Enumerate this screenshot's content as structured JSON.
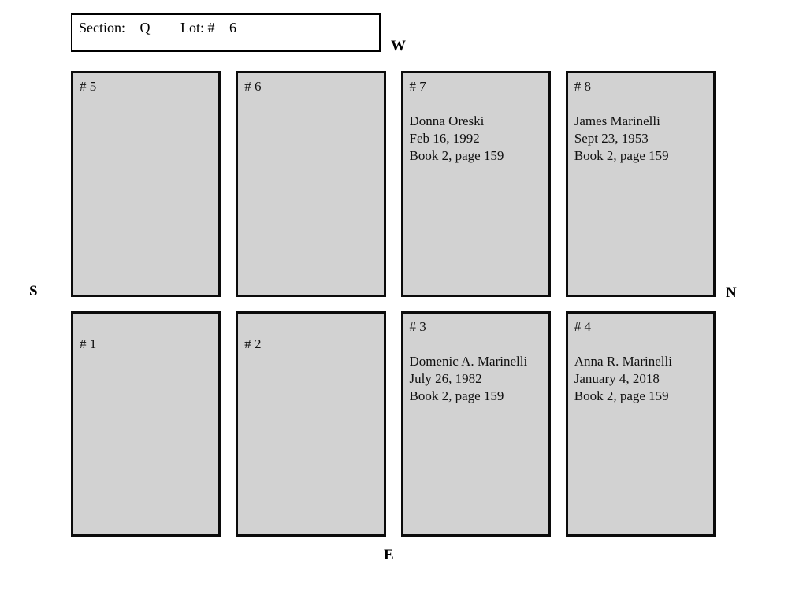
{
  "header": {
    "section_label": "Section:",
    "section_value": "Q",
    "lot_label": "Lot: #",
    "lot_value": "6"
  },
  "compass": {
    "west": "W",
    "south": "S",
    "north": "N",
    "east": "E"
  },
  "plots": [
    {
      "label": "# 5",
      "name": "",
      "date": "",
      "book": ""
    },
    {
      "label": "# 6",
      "name": "",
      "date": "",
      "book": ""
    },
    {
      "label": "# 7",
      "name": "Donna Oreski",
      "date": "Feb 16, 1992",
      "book": "Book 2, page 159"
    },
    {
      "label": "# 8",
      "name": "James Marinelli",
      "date": "Sept 23, 1953",
      "book": "Book 2, page 159"
    },
    {
      "label": "# 1",
      "name": "",
      "date": "",
      "book": ""
    },
    {
      "label": "# 2",
      "name": "",
      "date": "",
      "book": ""
    },
    {
      "label": "# 3",
      "name": "Domenic A. Marinelli",
      "date": "July 26, 1982",
      "book": "Book 2, page 159"
    },
    {
      "label": "# 4",
      "name": "Anna R. Marinelli",
      "date": "January 4, 2018",
      "book": "Book 2, page 159"
    }
  ],
  "colors": {
    "plot_fill": "#d2d2d2",
    "plot_border": "#0b0b0b",
    "page_background": "#ffffff",
    "text": "#111111"
  }
}
